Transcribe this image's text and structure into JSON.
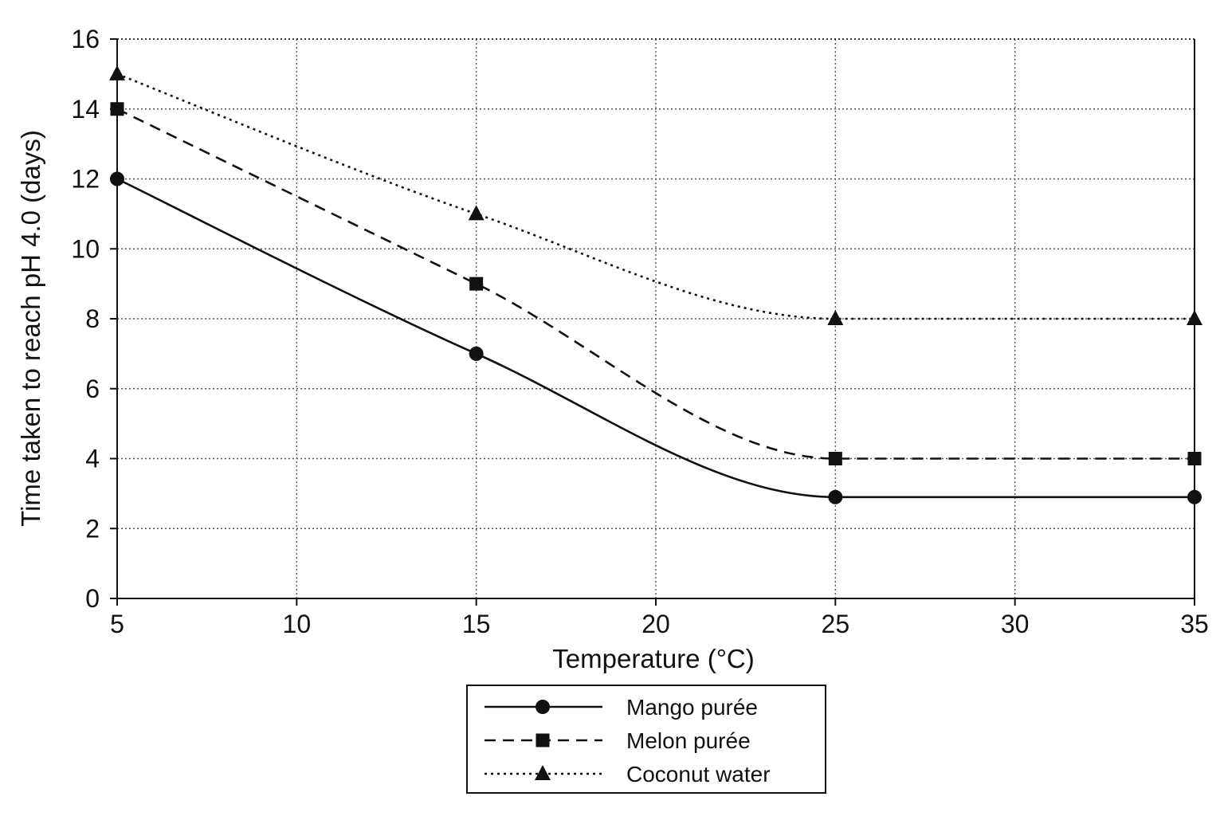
{
  "chart_data": {
    "type": "line",
    "title": "",
    "xlabel": "Temperature (°C)",
    "ylabel": "Time taken to reach pH 4.0 (days)",
    "xlim": [
      5,
      35
    ],
    "ylim": [
      0,
      16
    ],
    "xticks": [
      5,
      10,
      15,
      20,
      25,
      30,
      35
    ],
    "yticks": [
      0,
      2,
      4,
      6,
      8,
      10,
      12,
      14,
      16
    ],
    "x": [
      5,
      15,
      25,
      35
    ],
    "grid": true,
    "legend_position": "bottom-center",
    "series": [
      {
        "name": "Mango purée",
        "values": [
          12,
          7,
          2.9,
          2.9
        ],
        "line_style": "solid",
        "marker": "circle",
        "color": "#111111"
      },
      {
        "name": "Melon purée",
        "values": [
          14,
          9,
          4,
          4
        ],
        "line_style": "dashed",
        "marker": "square",
        "color": "#111111"
      },
      {
        "name": "Coconut water",
        "values": [
          15,
          11,
          8,
          8
        ],
        "line_style": "dotted",
        "marker": "triangle",
        "color": "#111111"
      }
    ]
  }
}
